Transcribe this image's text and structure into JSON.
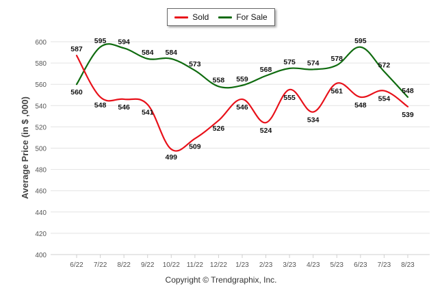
{
  "chart_data": {
    "type": "line",
    "categories": [
      "6/22",
      "7/22",
      "8/22",
      "9/22",
      "10/22",
      "11/22",
      "12/22",
      "1/23",
      "2/23",
      "3/23",
      "4/23",
      "5/23",
      "6/23",
      "7/23",
      "8/23"
    ],
    "series": [
      {
        "name": "Sold",
        "color": "#e8111a",
        "values": [
          587,
          548,
          546,
          541,
          499,
          509,
          526,
          546,
          524,
          555,
          534,
          561,
          548,
          554,
          539
        ]
      },
      {
        "name": "For Sale",
        "color": "#0f6b0f",
        "values": [
          560,
          595,
          594,
          584,
          584,
          573,
          558,
          559,
          568,
          575,
          574,
          578,
          595,
          572,
          548
        ]
      }
    ],
    "ylabel": "Average Price (in $ ,000)",
    "ylim": [
      400,
      600
    ],
    "yticks": [
      400,
      420,
      440,
      460,
      480,
      500,
      520,
      540,
      560,
      580,
      600
    ],
    "grid": true,
    "legend_position": "top-center"
  },
  "legend": {
    "sold_label": "Sold",
    "forsale_label": "For Sale"
  },
  "footer": "Copyright © Trendgraphix, Inc."
}
